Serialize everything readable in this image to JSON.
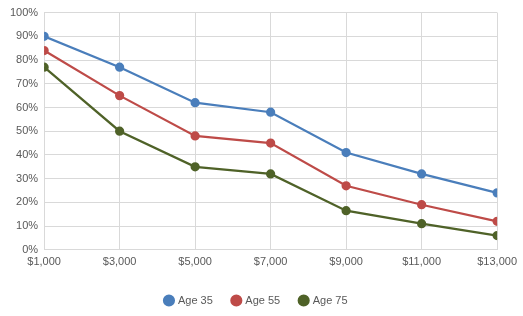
{
  "chart_data": {
    "type": "line",
    "categories": [
      "$1,000",
      "$3,000",
      "$5,000",
      "$7,000",
      "$9,000",
      "$11,000",
      "$13,000"
    ],
    "series": [
      {
        "name": "Age 35",
        "color": "#4a7ebb",
        "values": [
          90,
          77,
          62,
          58,
          41,
          32,
          24
        ]
      },
      {
        "name": "Age 55",
        "color": "#be4b48",
        "values": [
          84,
          65,
          48,
          45,
          27,
          19,
          12
        ]
      },
      {
        "name": "Age 75",
        "color": "#4f6228",
        "values": [
          77,
          50,
          35,
          32,
          16.5,
          11,
          6
        ]
      }
    ],
    "ylim": [
      0,
      100
    ],
    "yticks": [
      {
        "value": 0,
        "label": "0%"
      },
      {
        "value": 10,
        "label": "10%"
      },
      {
        "value": 20,
        "label": "20%"
      },
      {
        "value": 30,
        "label": "30%"
      },
      {
        "value": 40,
        "label": "40%"
      },
      {
        "value": 50,
        "label": "50%"
      },
      {
        "value": 60,
        "label": "60%"
      },
      {
        "value": 70,
        "label": "70%"
      },
      {
        "value": 80,
        "label": "80%"
      },
      {
        "value": 90,
        "label": "90%"
      },
      {
        "value": 100,
        "label": "100%"
      }
    ],
    "grid": true,
    "legend": "bottom",
    "marker": "circle",
    "line_style": "solid"
  }
}
